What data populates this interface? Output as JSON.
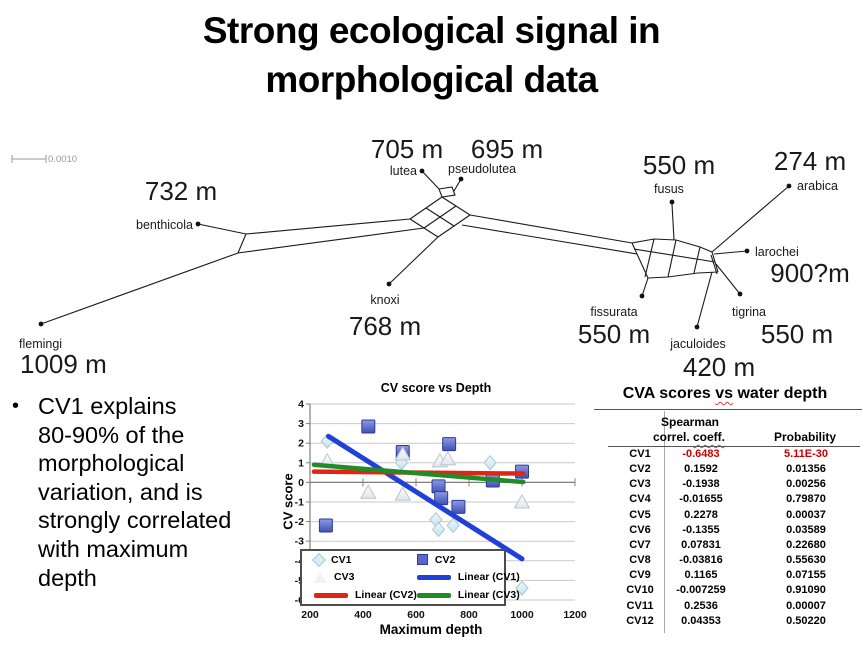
{
  "slide": {
    "title_line1": "Strong ecological signal in",
    "title_line2": "morphological data"
  },
  "bullet": {
    "marker": "•",
    "lines": [
      "CV1 explains",
      "80-90% of the",
      "morphological",
      "variation, and is",
      "strongly correlated",
      "with maximum",
      "depth"
    ]
  },
  "network": {
    "scale_bar_label": "0.0010",
    "taxa": [
      {
        "name": "flemingi",
        "depth": "1009 m"
      },
      {
        "name": "benthicola",
        "depth": "732 m"
      },
      {
        "name": "lutea",
        "depth": "705 m"
      },
      {
        "name": "pseudolutea",
        "depth": "695 m"
      },
      {
        "name": "knoxi",
        "depth": "768 m"
      },
      {
        "name": "fusus",
        "depth": "550 m"
      },
      {
        "name": "arabica",
        "depth": "274 m"
      },
      {
        "name": "larochei",
        "depth": "900?m"
      },
      {
        "name": "tigrina",
        "depth": "550 m"
      },
      {
        "name": "jaculoides",
        "depth": "420 m"
      },
      {
        "name": "fissurata",
        "depth": "550 m"
      }
    ]
  },
  "chart_data": {
    "type": "scatter",
    "title": "CV score vs Depth",
    "xlabel": "Maximum depth",
    "ylabel": "CV score",
    "xlim": [
      200,
      1200
    ],
    "ylim": [
      -6,
      4
    ],
    "xticks": [
      200,
      400,
      600,
      800,
      1000,
      1200
    ],
    "yticks": [
      -6,
      -5,
      -4,
      -3,
      -2,
      -1,
      0,
      1,
      2,
      3,
      4
    ],
    "grid": true,
    "legend_position": "bottom-left",
    "series": [
      {
        "name": "CV1",
        "marker": "diamond",
        "color": "#d9ecf3",
        "edge": "#a5c8d4",
        "points": [
          [
            265,
            2.1
          ],
          [
            545,
            1.0
          ],
          [
            675,
            -1.9
          ],
          [
            685,
            -2.4
          ],
          [
            740,
            -2.2
          ],
          [
            880,
            1.0
          ],
          [
            1000,
            -5.4
          ]
        ]
      },
      {
        "name": "CV2",
        "marker": "square",
        "color": "#5b66c7",
        "edge": "#2e3c96",
        "points": [
          [
            260,
            -2.2
          ],
          [
            420,
            2.85
          ],
          [
            550,
            1.55
          ],
          [
            685,
            -0.2
          ],
          [
            695,
            -0.8
          ],
          [
            725,
            1.95
          ],
          [
            760,
            -1.25
          ],
          [
            890,
            0.1
          ],
          [
            1000,
            0.55
          ]
        ]
      },
      {
        "name": "CV3",
        "marker": "triangle",
        "color": "#eef3f7",
        "edge": "#b9c5cf",
        "points": [
          [
            265,
            1.1
          ],
          [
            420,
            -0.5
          ],
          [
            550,
            1.45
          ],
          [
            550,
            -0.6
          ],
          [
            690,
            1.1
          ],
          [
            720,
            1.2
          ],
          [
            1000,
            -1.0
          ]
        ]
      },
      {
        "name": "Linear (CV1)",
        "marker": "line",
        "color": "#2140d8",
        "trend": [
          [
            270,
            2.35
          ],
          [
            1000,
            -3.9
          ]
        ]
      },
      {
        "name": "Linear (CV2)",
        "marker": "line",
        "color": "#e02515",
        "trend": [
          [
            215,
            0.55
          ],
          [
            1005,
            0.45
          ]
        ]
      },
      {
        "name": "Linear (CV3)",
        "marker": "line",
        "color": "#1f8c28",
        "trend": [
          [
            215,
            0.9
          ],
          [
            1005,
            0.02
          ]
        ]
      }
    ]
  },
  "table": {
    "title_prefix": "CVA scores ",
    "title_wavy": "vs",
    "title_suffix": " water depth",
    "header": {
      "col1_line1": "Spearman",
      "col1_line2_prefix": "correl. ",
      "col1_line2_wavy": "coeff.",
      "col2": "Probability"
    },
    "highlight_color": "#c80000",
    "rows": [
      {
        "label": "CV1",
        "spearman": "-0.6483",
        "prob": "5.11E-30",
        "highlight": true
      },
      {
        "label": "CV2",
        "spearman": "0.1592",
        "prob": "0.01356",
        "highlight": false
      },
      {
        "label": "CV3",
        "spearman": "-0.1938",
        "prob": "0.00256",
        "highlight": false
      },
      {
        "label": "CV4",
        "spearman": "-0.01655",
        "prob": "0.79870",
        "highlight": false
      },
      {
        "label": "CV5",
        "spearman": "0.2278",
        "prob": "0.00037",
        "highlight": false
      },
      {
        "label": "CV6",
        "spearman": "-0.1355",
        "prob": "0.03589",
        "highlight": false
      },
      {
        "label": "CV7",
        "spearman": "0.07831",
        "prob": "0.22680",
        "highlight": false
      },
      {
        "label": "CV8",
        "spearman": "-0.03816",
        "prob": "0.55630",
        "highlight": false
      },
      {
        "label": "CV9",
        "spearman": "0.1165",
        "prob": "0.07155",
        "highlight": false
      },
      {
        "label": "CV10",
        "spearman": "-0.007259",
        "prob": "0.91090",
        "highlight": false
      },
      {
        "label": "CV11",
        "spearman": "0.2536",
        "prob": "0.00007",
        "highlight": false
      },
      {
        "label": "CV12",
        "spearman": "0.04353",
        "prob": "0.50220",
        "highlight": false
      }
    ]
  }
}
